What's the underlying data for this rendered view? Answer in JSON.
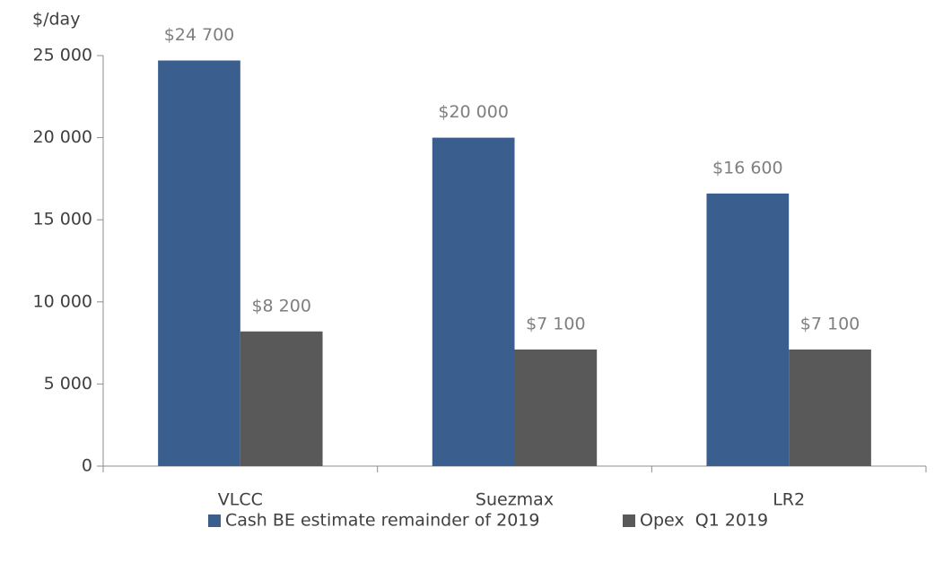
{
  "chart_data": {
    "type": "bar",
    "y_label": "$/day",
    "categories": [
      "VLCC",
      "Suezmax",
      "LR2"
    ],
    "series": [
      {
        "name": "Cash BE estimate remainder of 2019",
        "color": "#3a5f8f",
        "values": [
          24700,
          20000,
          16600
        ],
        "value_labels": [
          "$24 700",
          "$20 000",
          "$16 600"
        ]
      },
      {
        "name": "Opex  Q1 2019",
        "color": "#595959",
        "values": [
          8200,
          7100,
          7100
        ],
        "value_labels": [
          "$8 200",
          "$7 100",
          "$7 100"
        ]
      }
    ],
    "ylim": [
      0,
      25000
    ],
    "yticks": [
      0,
      {
        "value": 5000,
        "label": "5 000"
      },
      {
        "value": 10000,
        "label": "10 000"
      },
      {
        "value": 15000,
        "label": "15 000"
      },
      {
        "value": 20000,
        "label": "20 000"
      },
      {
        "value": 25000,
        "label": "25 000"
      }
    ],
    "grid": false,
    "legend": "bottom"
  }
}
